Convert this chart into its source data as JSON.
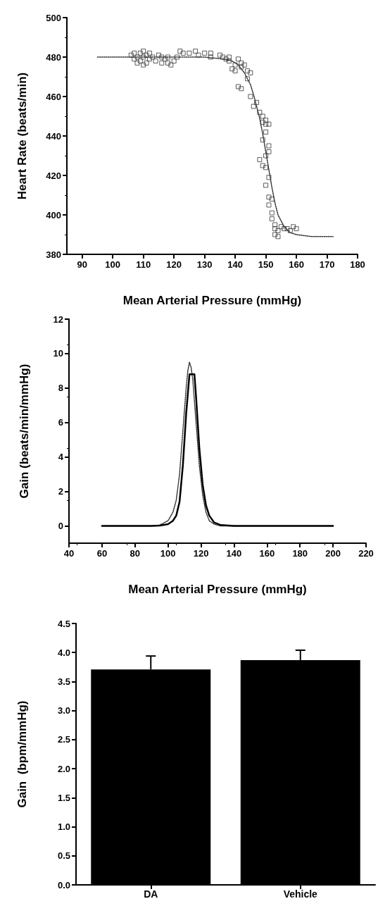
{
  "chart_data": [
    {
      "type": "scatter",
      "xlabel": "Mean Arterial Pressure (mmHg)",
      "ylabel": "Heart Rate (beats/min)",
      "xlim": [
        85,
        180
      ],
      "xticks": [
        90,
        100,
        110,
        120,
        130,
        140,
        150,
        160,
        170,
        180
      ],
      "ylim": [
        380,
        500
      ],
      "yticks": [
        380,
        400,
        420,
        440,
        460,
        480,
        500
      ],
      "grid": false,
      "series": [
        {
          "type": "scatter",
          "marker": "square",
          "color": "#333333",
          "x": [
            106,
            107,
            107,
            108,
            108,
            109,
            109,
            110,
            110,
            110,
            111,
            111,
            112,
            112,
            113,
            114,
            115,
            116,
            116,
            117,
            118,
            118,
            119,
            120,
            121,
            122,
            123,
            125,
            127,
            128,
            130,
            132,
            132,
            135,
            136,
            137,
            138,
            138,
            139,
            140,
            140,
            141,
            142,
            142,
            143,
            144,
            145,
            144,
            141,
            142,
            145,
            146,
            147,
            148,
            149,
            149,
            150,
            150,
            151,
            150,
            149,
            151,
            151,
            150,
            148,
            149,
            150,
            151,
            150,
            151,
            152,
            151,
            152,
            152,
            153,
            153,
            154,
            155,
            156,
            157,
            158,
            159,
            160,
            153,
            154
          ],
          "values": [
            481,
            479,
            482,
            477,
            480,
            482,
            478,
            476,
            480,
            483,
            477,
            481,
            479,
            482,
            480,
            478,
            481,
            477,
            480,
            479,
            477,
            480,
            476,
            478,
            480,
            483,
            482,
            482,
            483,
            481,
            482,
            482,
            480,
            481,
            480,
            479,
            478,
            480,
            474,
            473,
            476,
            479,
            475,
            477,
            476,
            473,
            472,
            469,
            465,
            464,
            460,
            455,
            457,
            452,
            450,
            447,
            448,
            446,
            446,
            442,
            438,
            435,
            432,
            430,
            428,
            425,
            424,
            419,
            415,
            409,
            408,
            405,
            401,
            398,
            395,
            393,
            392,
            394,
            393,
            393,
            392,
            394,
            393,
            390,
            389
          ]
        },
        {
          "type": "line",
          "marker": "none",
          "line_style": "dotted",
          "color": "#333333",
          "x": [
            95,
            120,
            130,
            136,
            139,
            141,
            143,
            145,
            146,
            147,
            148,
            149,
            150,
            151,
            152,
            153,
            154,
            156,
            158,
            160,
            165,
            172
          ],
          "values": [
            480,
            480,
            480,
            479,
            478,
            476,
            472,
            466,
            461,
            455,
            449,
            441,
            432,
            423,
            414,
            406,
            400,
            394,
            391,
            390,
            389,
            389
          ]
        }
      ]
    },
    {
      "type": "line",
      "xlabel": "Mean Arterial Pressure (mmHg)",
      "ylabel": "Gain (beats/min/mmHg)",
      "xlim": [
        40,
        220
      ],
      "xticks": [
        40,
        60,
        80,
        100,
        120,
        140,
        160,
        180,
        200,
        220
      ],
      "ylim": [
        -1,
        12
      ],
      "yticks": [
        0,
        2,
        4,
        6,
        8,
        10,
        12
      ],
      "grid": false,
      "series": [
        {
          "type": "line",
          "marker": "none",
          "line_style": "dotted",
          "color": "#333333",
          "x": [
            60,
            90,
            95,
            100,
            103,
            105,
            107,
            109,
            111,
            112,
            113,
            114,
            115,
            117,
            119,
            121,
            123,
            125,
            128,
            132,
            140,
            200
          ],
          "values": [
            0,
            0,
            0.05,
            0.3,
            0.8,
            1.5,
            3,
            5.5,
            8,
            9,
            9.5,
            9.2,
            8.5,
            6,
            3.5,
            1.8,
            0.8,
            0.3,
            0.1,
            0,
            0,
            0
          ]
        },
        {
          "type": "line",
          "marker": "none",
          "line_style": "solid",
          "color": "#000000",
          "x": [
            60,
            90,
            95,
            100,
            103,
            105,
            107,
            109,
            111,
            113,
            114,
            116,
            117,
            119,
            121,
            123,
            125,
            128,
            132,
            140,
            200
          ],
          "values": [
            0,
            0,
            0.02,
            0.1,
            0.3,
            0.6,
            1.4,
            3.5,
            6.5,
            8.8,
            8.8,
            8.8,
            7.5,
            4.5,
            2.4,
            1.2,
            0.6,
            0.2,
            0.05,
            0,
            0
          ]
        }
      ]
    },
    {
      "type": "bar",
      "ylabel": "Gain  (bpm/mmHg)",
      "categories": [
        "DA",
        "Vehicle"
      ],
      "values": [
        3.71,
        3.87
      ],
      "errors": [
        [
          3.71,
          3.94
        ],
        [
          3.87,
          4.04
        ]
      ],
      "color": "#000000",
      "ylim": [
        0,
        4.5
      ],
      "yticks": [
        {
          "value": 0,
          "label": "0.0"
        },
        {
          "value": 0.5,
          "label": "0.5"
        },
        {
          "value": 1,
          "label": "1.0"
        },
        {
          "value": 1.5,
          "label": "1.5"
        },
        {
          "value": 2,
          "label": "2.0"
        },
        {
          "value": 2.5,
          "label": "2.5"
        },
        {
          "value": 3,
          "label": "3.0"
        },
        {
          "value": 3.5,
          "label": "3.5"
        },
        {
          "value": 4,
          "label": "4.0"
        },
        {
          "value": 4.5,
          "label": "4.5"
        }
      ],
      "grid": false
    }
  ]
}
